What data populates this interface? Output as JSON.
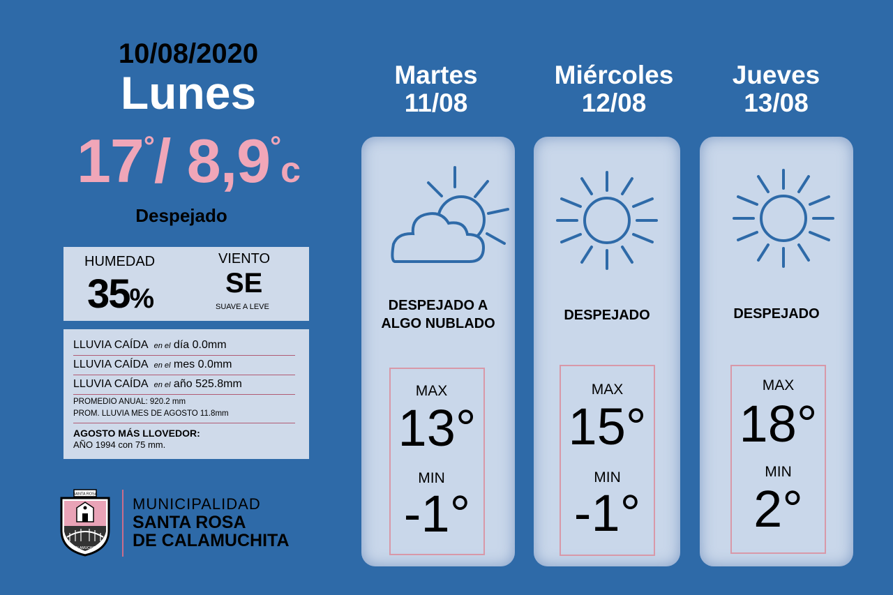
{
  "today": {
    "date": "10/08/2020",
    "day": "Lunes",
    "max": "17",
    "min": "8,9",
    "unit": "c",
    "condition": "Despejado"
  },
  "humidity": {
    "label": "HUMEDAD",
    "value": "35",
    "unit": "%"
  },
  "wind": {
    "label": "VIENTO",
    "value": "SE",
    "desc": "SUAVE A LEVE"
  },
  "rain": {
    "rows": [
      {
        "label": "LLUVIA CAÍDA",
        "prep": "en el",
        "period": "día",
        "value": "0.0mm"
      },
      {
        "label": "LLUVIA CAÍDA",
        "prep": "en el",
        "period": "mes",
        "value": "0.0mm"
      },
      {
        "label": "LLUVIA CAÍDA",
        "prep": "en el",
        "period": "año",
        "value": "525.8mm"
      }
    ],
    "annual_avg": "PROMEDIO ANUAL: 920.2 mm",
    "month_avg": "PROM. LLUVIA MES DE AGOSTO 11.8mm",
    "rainiest_title": "AGOSTO MÁS LLOVEDOR:",
    "rainiest_detail": "AÑO 1994  con 75 mm."
  },
  "municipality": {
    "line1": "MUNICIPALIDAD",
    "line2": "SANTA ROSA",
    "line3": "DE CALAMUCHITA",
    "seal_top": "SANTA ROSA",
    "seal_bottom": "CALAMUCHITA"
  },
  "labels": {
    "max": "MAX",
    "min": "MIN"
  },
  "forecast": [
    {
      "day": "Martes",
      "date": "11/08",
      "condition_line1": "DESPEJADO A",
      "condition_line2": "ALGO NUBLADO",
      "icon": "partly-cloudy-icon",
      "max": "13°",
      "min": "-1°"
    },
    {
      "day": "Miércoles",
      "date": "12/08",
      "condition_line1": "DESPEJADO",
      "condition_line2": "",
      "icon": "sun-icon",
      "max": "15°",
      "min": "-1°"
    },
    {
      "day": "Jueves",
      "date": "13/08",
      "condition_line1": "DESPEJADO",
      "condition_line2": "",
      "icon": "sun-icon",
      "max": "18°",
      "min": "2°"
    }
  ],
  "colors": {
    "background": "#2e6aa8",
    "accent_pink": "#f0a6b8",
    "panel": "#cfdaea",
    "icon_blue": "#2e6aa8"
  }
}
